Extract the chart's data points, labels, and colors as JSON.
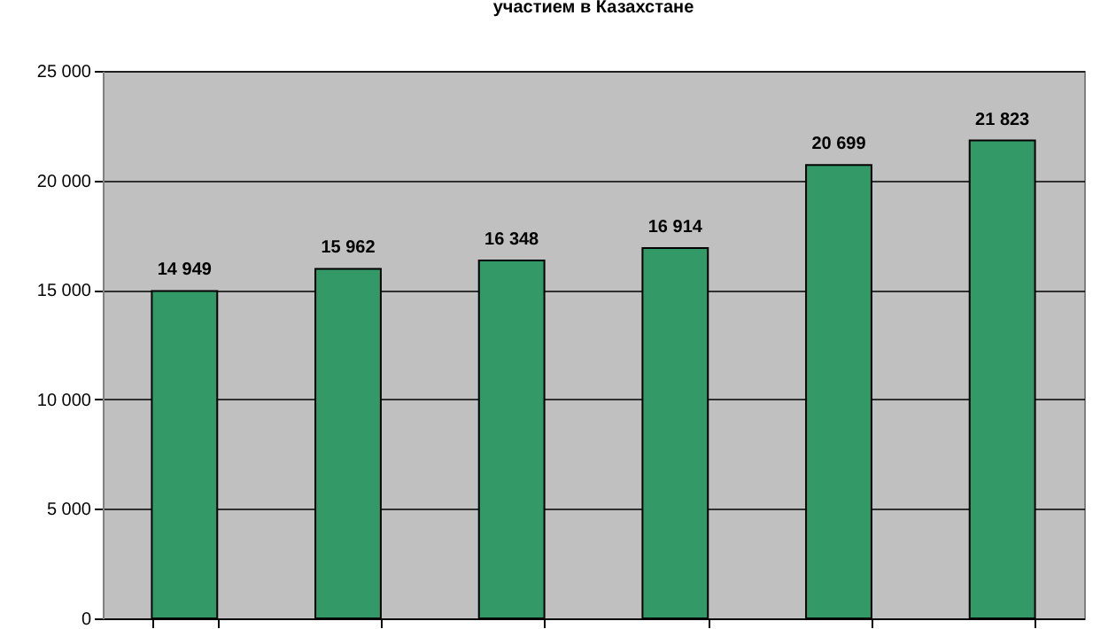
{
  "chart_data": {
    "type": "bar",
    "title": "участием в Казахстане",
    "categories": [
      null,
      null,
      null,
      null,
      null,
      null
    ],
    "series": [
      {
        "color": "#339966",
        "values": [
          14949,
          15962,
          16348,
          16914,
          20699,
          21823
        ]
      }
    ],
    "value_labels": [
      "14 949",
      "15 962",
      "16 348",
      "16 914",
      "20 699",
      "21 823"
    ],
    "ylim": [
      0,
      25000
    ],
    "yticks": [
      {
        "value": 0,
        "label": "0"
      },
      {
        "value": 5000,
        "label": "5 000"
      },
      {
        "value": 10000,
        "label": "10 000"
      },
      {
        "value": 15000,
        "label": "15 000"
      },
      {
        "value": 20000,
        "label": "20 000"
      },
      {
        "value": 25000,
        "label": "25 000"
      }
    ],
    "grid": "y",
    "tick_labels": "y"
  }
}
